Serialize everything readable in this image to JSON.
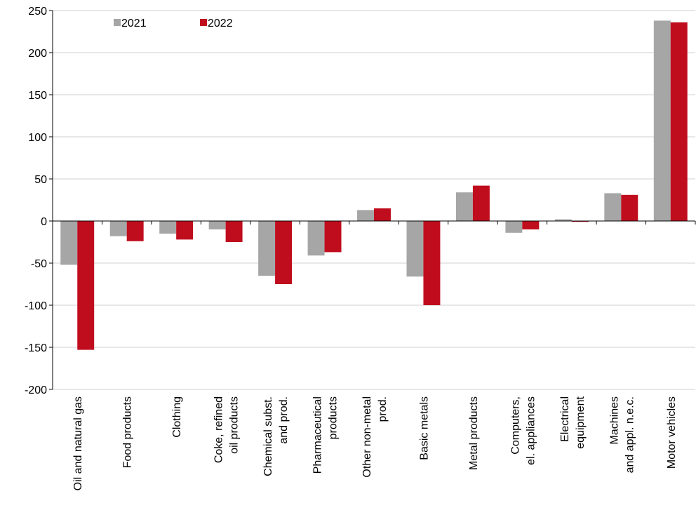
{
  "chart_data": {
    "type": "bar",
    "categories": [
      [
        "Oil and natural gas"
      ],
      [
        "Food products"
      ],
      [
        "Clothing"
      ],
      [
        "Coke, refined",
        "oil products"
      ],
      [
        "Chemical subst.",
        "and prod."
      ],
      [
        "Pharmaceutical",
        "products"
      ],
      [
        "Other non-metal",
        "prod."
      ],
      [
        "Basic metals"
      ],
      [
        "Metal products"
      ],
      [
        "Computers,",
        "el. appliances"
      ],
      [
        "Electrical",
        "equipment"
      ],
      [
        "Machines",
        "and appl. n.e.c."
      ],
      [
        "Motor vehicles"
      ]
    ],
    "series": [
      {
        "name": "2021",
        "color": "#a6a6a6",
        "values": [
          -52,
          -18,
          -15,
          -10,
          -65,
          -41,
          13,
          -66,
          34,
          -14,
          2,
          33,
          238
        ]
      },
      {
        "name": "2022",
        "color": "#c00d1e",
        "values": [
          -153,
          -24,
          -22,
          -25,
          -75,
          -37,
          15,
          -100,
          42,
          -10,
          -1,
          31,
          236
        ]
      }
    ],
    "ylim": [
      -200,
      250
    ],
    "yticks": [
      -200,
      -150,
      -100,
      -50,
      0,
      50,
      100,
      150,
      200,
      250
    ],
    "grid": true,
    "legend": "top-left"
  }
}
